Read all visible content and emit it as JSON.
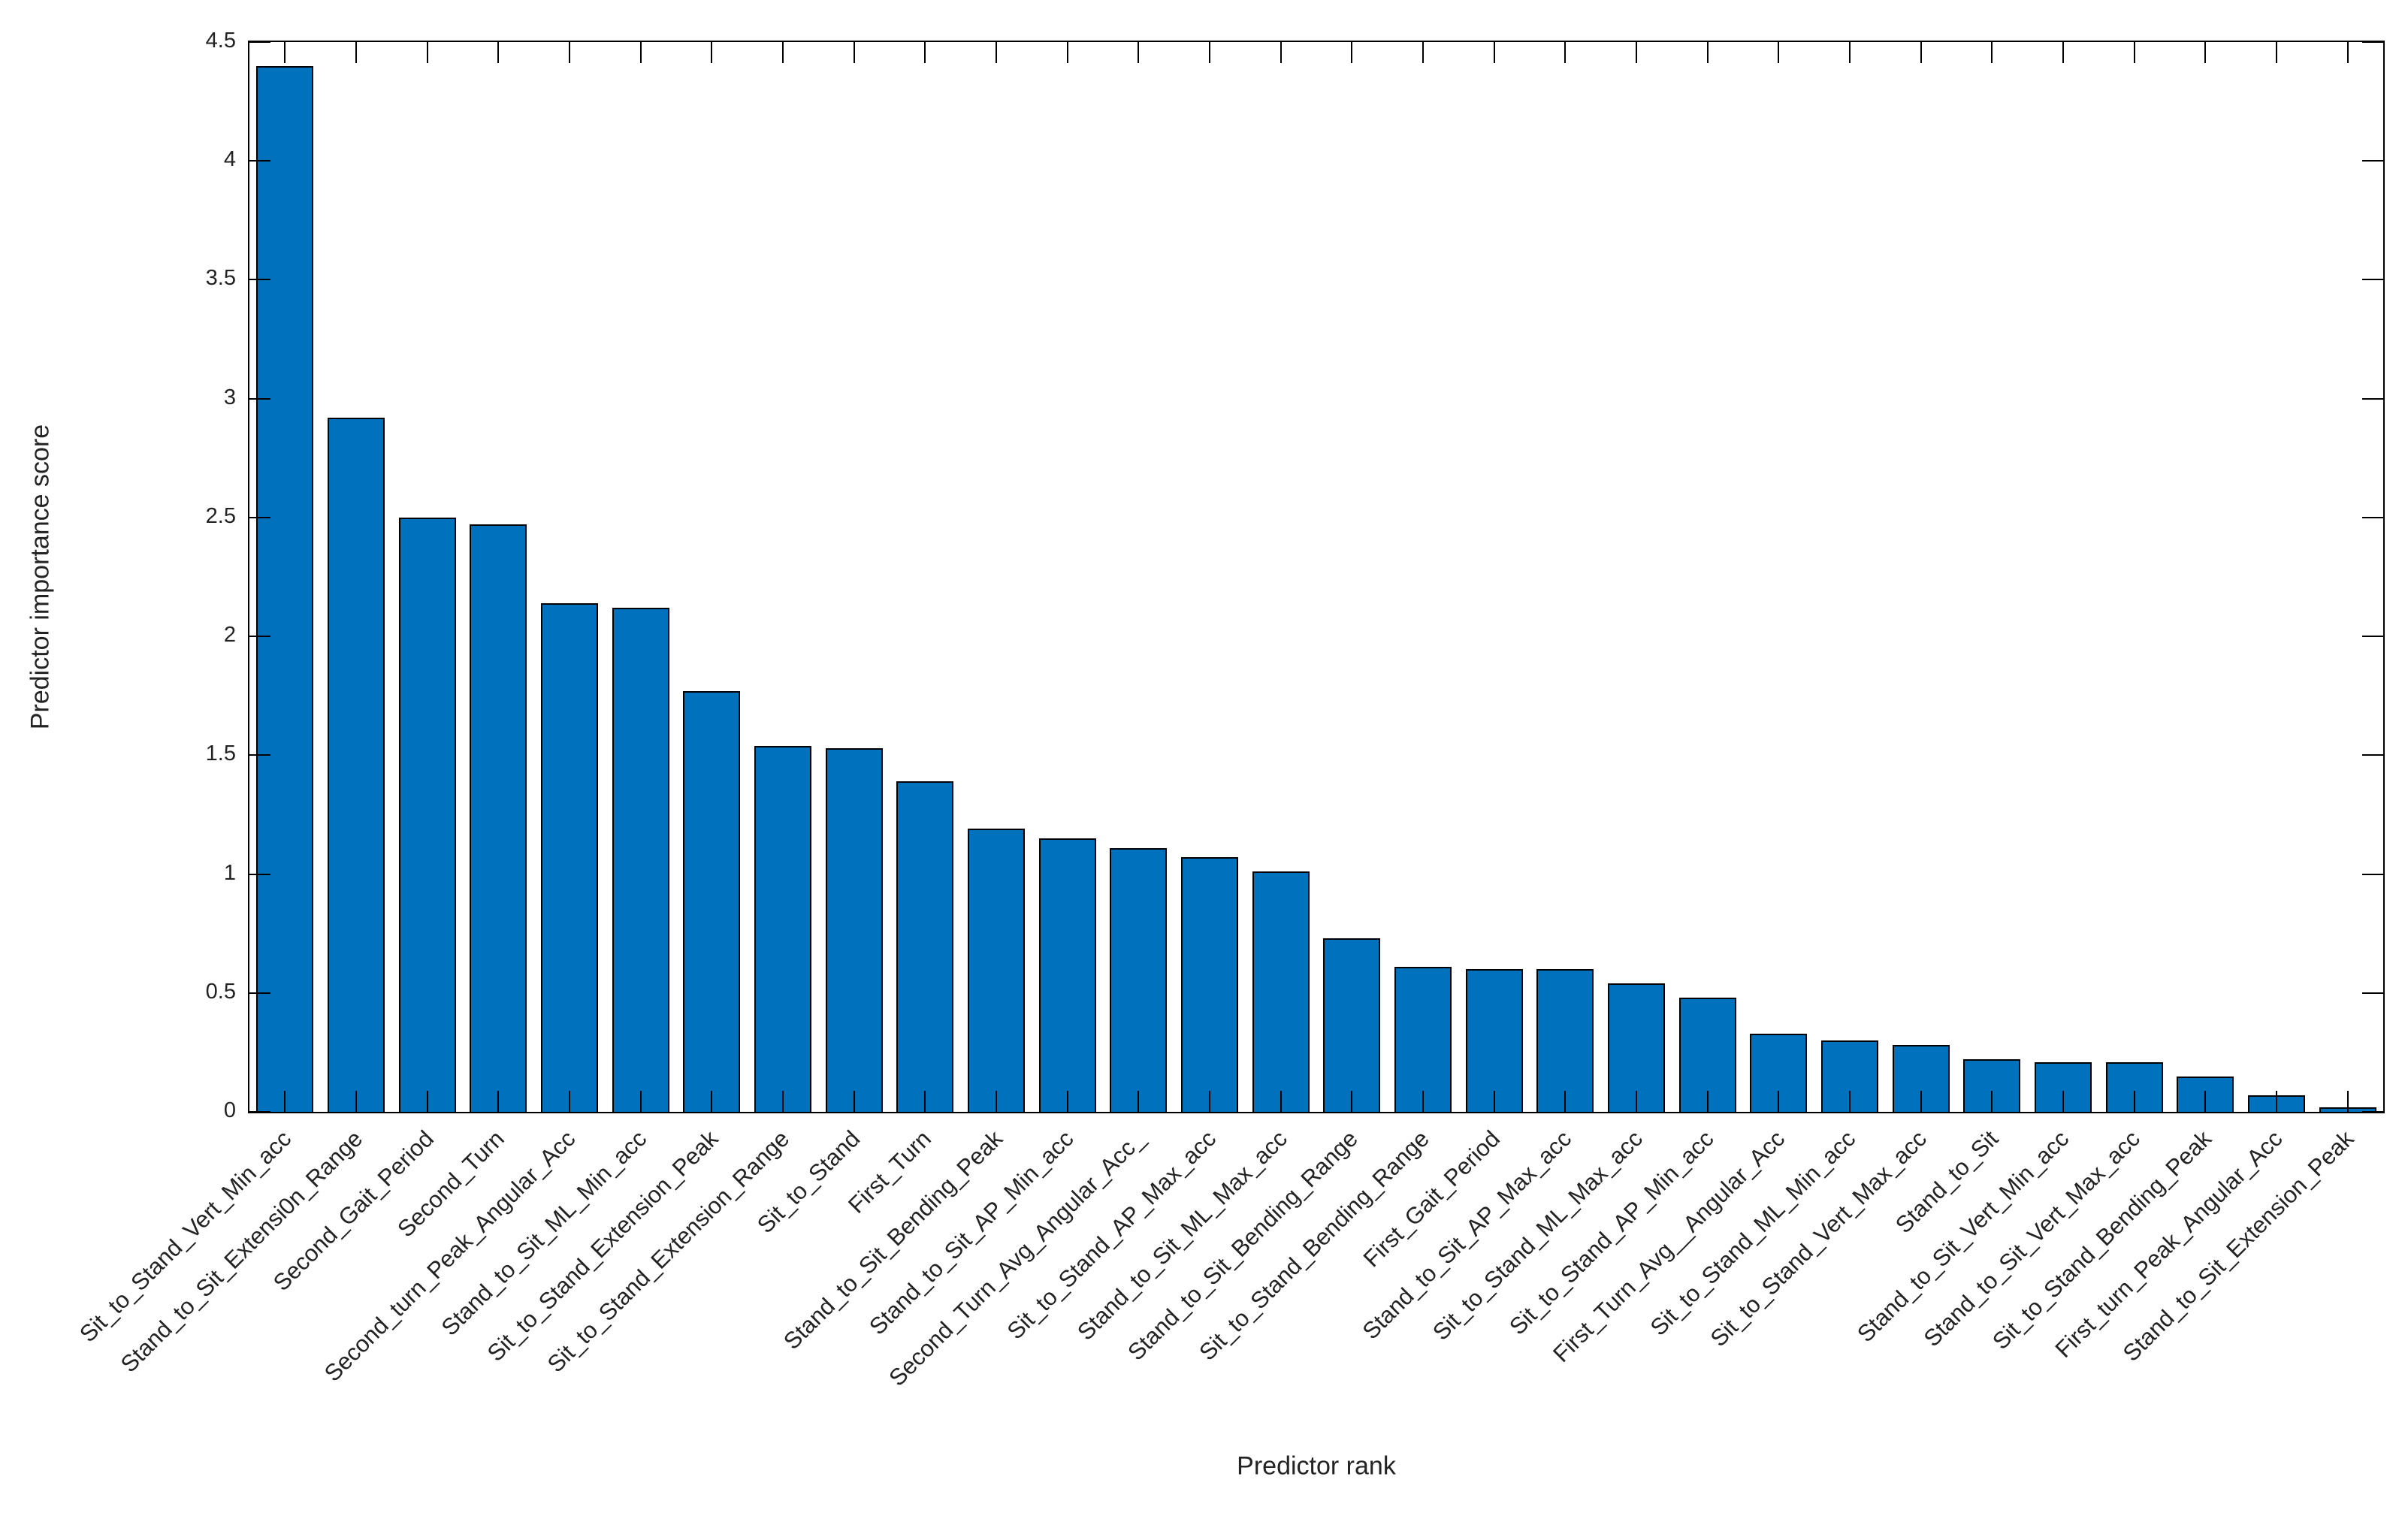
{
  "figure": {
    "background_color": "#ffffff",
    "bar_fill_color": "#0072BD",
    "bar_edge_color": "#000000",
    "axis_color": "#000000",
    "text_color": "#232323"
  },
  "chart_data": {
    "type": "bar",
    "title": "",
    "xlabel": "Predictor rank",
    "ylabel": "Predictor importance score",
    "ylim": [
      0,
      4.5
    ],
    "grid": false,
    "legend": "none",
    "yticks": [
      0,
      0.5,
      1,
      1.5,
      2,
      2.5,
      3,
      3.5,
      4,
      4.5
    ],
    "ytick_labels": [
      "0",
      "0.5",
      "1",
      "1.5",
      "2",
      "2.5",
      "3",
      "3.5",
      "4",
      "4.5"
    ],
    "categories": [
      "Sit_to_Stand_Vert_Min_acc",
      "Stand_to_Sit_Extensi0n_Range",
      "Second_Gait_Period",
      "Second_Turn",
      "Second_turn_Peak_Angular_Acc",
      "Stand_to_Sit_ML_Min_acc",
      "Sit_to_Stand_Extension_Peak",
      "Sit_to_Stand_Extension_Range",
      "Sit_to_Stand",
      "First_Turn",
      "Stand_to_Sit_Bending_Peak",
      "Stand_to_Sit_AP_Min_acc",
      "Second_Turn_Avg_Angular_Acc_",
      "Sit_to_Stand_AP_Max_acc",
      "Stand_to_Sit_ML_Max_acc",
      "Stand_to_Sit_Bending_Range",
      "Sit_to_Stand_Bending_Range",
      "First_Gait_Period",
      "Stand_to_Sit_AP_Max_acc",
      "Sit_to_Stand_ML_Max_acc",
      "Sit_to_Stand_AP_Min_acc",
      "First_Turn_Avg__Angular_Acc",
      "Sit_to_Stand_ML_Min_acc",
      "Sit_to_Stand_Vert_Max_acc",
      "Stand_to_Sit",
      "Stand_to_Sit_Vert_Min_acc",
      "Stand_to_Sit_Vert_Max_acc",
      "Sit_to_Stand_Bending_Peak",
      "First_turn_Peak_Angular_Acc",
      "Stand_to_Sit_Extension_Peak"
    ],
    "values": [
      4.4,
      2.92,
      2.5,
      2.47,
      2.14,
      2.12,
      1.77,
      1.54,
      1.53,
      1.39,
      1.19,
      1.15,
      1.11,
      1.07,
      1.01,
      0.73,
      0.61,
      0.6,
      0.6,
      0.54,
      0.48,
      0.33,
      0.3,
      0.28,
      0.22,
      0.21,
      0.21,
      0.15,
      0.07,
      0.02
    ]
  }
}
